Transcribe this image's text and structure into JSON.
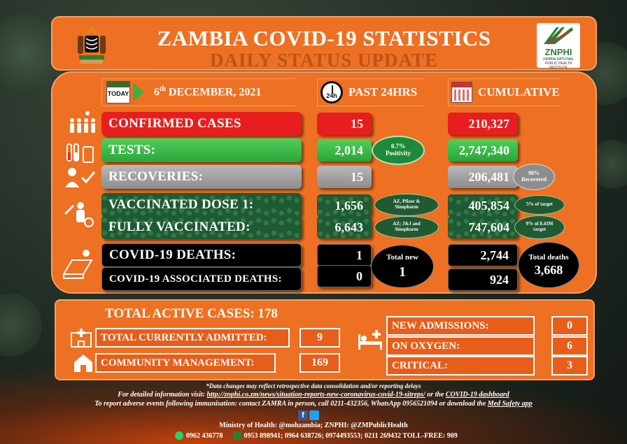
{
  "header": {
    "title": "ZAMBIA COVID-19 STATISTICS",
    "subtitle": "DAILY STATUS UPDATE",
    "logo_text": "ZNPHI",
    "logo_sub": "ZAMBIA NATIONAL PUBLIC HEALTH INSTITUTE"
  },
  "columns": {
    "today_icon": "TODAY",
    "date": "6th DECEMBER, 2021",
    "date_day": "6",
    "date_suffix": "th",
    "date_rest": " DECEMBER, 2021",
    "clock_icon": "24h",
    "past24": "PAST 24HRS",
    "cumulative": "CUMULATIVE"
  },
  "rows": {
    "confirmed": {
      "label": "CONFIRMED CASES",
      "past24": "15",
      "cumulative": "210,327"
    },
    "tests": {
      "label": "TESTS:",
      "past24": "2,014",
      "positivity": "0.7% Positivity",
      "cumulative": "2,747,340"
    },
    "recoveries": {
      "label": "RECOVERIES:",
      "past24": "15",
      "cumulative": "206,481",
      "recovered_pct": "98% Recovered"
    },
    "dose1": {
      "label": "VACCINATED DOSE 1:",
      "past24": "1,656",
      "vaccines": "AZ, Pfizer & Sinopharm",
      "cumulative": "405,854",
      "target": "5% of target"
    },
    "fully": {
      "label": "FULLY VACCINATED:",
      "past24": "6,643",
      "vaccines": "AZ; J&J and Sinopharm",
      "cumulative": "747,604",
      "target": "9% of 8.43M target"
    },
    "deaths": {
      "label": "COVID-19 DEATHS:",
      "past24": "1",
      "cumulative": "2,744"
    },
    "assoc_deaths": {
      "label": "COVID-19 ASSOCIATED DEATHS:",
      "past24": "0",
      "cumulative": "924"
    },
    "total_new": {
      "label": "Total new",
      "value": "1"
    },
    "total_deaths": {
      "label": "Total deaths",
      "value": "3,668"
    }
  },
  "active": {
    "title": "TOTAL ACTIVE CASES: 178",
    "admitted_label": "TOTAL CURRENTLY ADMITTED:",
    "admitted": "9",
    "community_label": "COMMUNITY MANAGEMENT:",
    "community": "169",
    "new_adm_label": "NEW ADMISSIONS:",
    "new_adm": "0",
    "oxygen_label": "ON OXYGEN:",
    "oxygen": "6",
    "critical_label": "CRITICAL:",
    "critical": "3"
  },
  "footer": {
    "note": "*Data changes may reflect retrospective data consolidation and/or reporting delays",
    "info_prefix": "For detailed information visit: ",
    "info_link": "http://znphi.co.zm/news/situation-reports-new-coronavirus-covid-19-sitreps/",
    "info_mid": " or the ",
    "info_link2": "COVID-19 dashboard",
    "report": "To report adverse events following immunisation: contact ZAMRA in person, call 0211-432356, WhatsApp 0956521094 or download the ",
    "report_link": "Med Safety app",
    "social": "Ministry of Health: @mohzambia; ZNPHI: @ZMPublicHealth",
    "whatsapp": "0962 436778",
    "phones": "0953 898941; 0964 638726; 0974493553; 0211 269432 TOLL-FREE: 909"
  },
  "colors": {
    "orange": "#ee7022",
    "red": "#e81e1e",
    "green": "#2ca33b",
    "dark_green": "#1f5a33",
    "grey": "#8d8d8d"
  }
}
